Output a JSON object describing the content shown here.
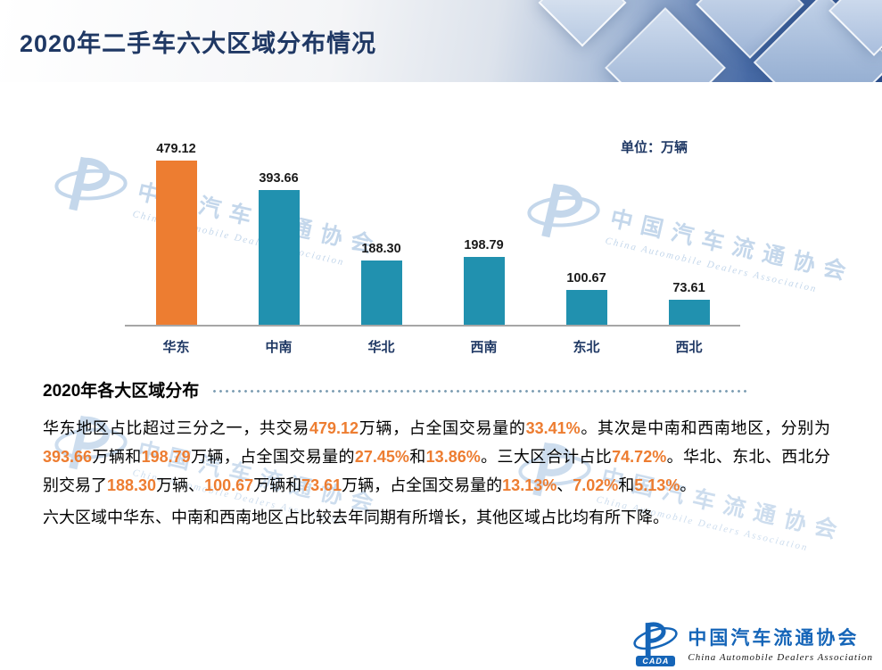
{
  "header": {
    "title": "2020年二手车六大区域分布情况"
  },
  "chart_data": {
    "type": "bar",
    "title": "2020年二手车六大区域分布情况",
    "unit_label": "单位：万辆",
    "categories": [
      "华东",
      "中南",
      "华北",
      "西南",
      "东北",
      "西北"
    ],
    "values": [
      479.12,
      393.66,
      188.3,
      198.79,
      100.67,
      73.61
    ],
    "value_labels": [
      "479.12",
      "393.66",
      "188.30",
      "198.79",
      "100.67",
      "73.61"
    ],
    "bar_colors": [
      "#ED7D31",
      "#2191AF",
      "#2191AF",
      "#2191AF",
      "#2191AF",
      "#2191AF"
    ],
    "xlabel": "",
    "ylabel": "",
    "ylim": [
      0,
      500
    ],
    "grid": false,
    "legend": false
  },
  "analysis": {
    "heading": "2020年各大区域分布",
    "paragraph1": [
      {
        "t": "华东地区占比超过三分之一，共交易",
        "hl": false
      },
      {
        "t": "479.12",
        "hl": true
      },
      {
        "t": "万辆，占全国交易量的",
        "hl": false
      },
      {
        "t": "33.41%",
        "hl": true
      },
      {
        "t": "。其次是中南和西南地区，分别为",
        "hl": false
      },
      {
        "t": "393.66",
        "hl": true
      },
      {
        "t": "万辆和",
        "hl": false
      },
      {
        "t": "198.79",
        "hl": true
      },
      {
        "t": "万辆，占全国交易量的",
        "hl": false
      },
      {
        "t": "27.45%",
        "hl": true
      },
      {
        "t": "和",
        "hl": false
      },
      {
        "t": "13.86%",
        "hl": true
      },
      {
        "t": "。三大区合计占比",
        "hl": false
      },
      {
        "t": "74.72%",
        "hl": true
      },
      {
        "t": "。华北、东北、西北分别交易了",
        "hl": false
      },
      {
        "t": "188.30",
        "hl": true
      },
      {
        "t": "万辆、",
        "hl": false
      },
      {
        "t": "100.67",
        "hl": true
      },
      {
        "t": "万辆和",
        "hl": false
      },
      {
        "t": "73.61",
        "hl": true
      },
      {
        "t": "万辆，占全国交易量的",
        "hl": false
      },
      {
        "t": "13.13%",
        "hl": true
      },
      {
        "t": "、",
        "hl": false
      },
      {
        "t": "7.02%",
        "hl": true
      },
      {
        "t": "和",
        "hl": false
      },
      {
        "t": "5.13%",
        "hl": true
      },
      {
        "t": "。",
        "hl": false
      }
    ],
    "paragraph2": "六大区域中华东、中南和西南地区占比较去年同期有所增长，其他区域占比均有所下降。"
  },
  "logo": {
    "badge": "CADA",
    "cn": "中国汽车流通协会",
    "en": "China Automobile Dealers Association"
  },
  "colors": {
    "accent_orange": "#ED7D31",
    "bar_teal": "#2191AF",
    "title_navy": "#1F3864"
  }
}
